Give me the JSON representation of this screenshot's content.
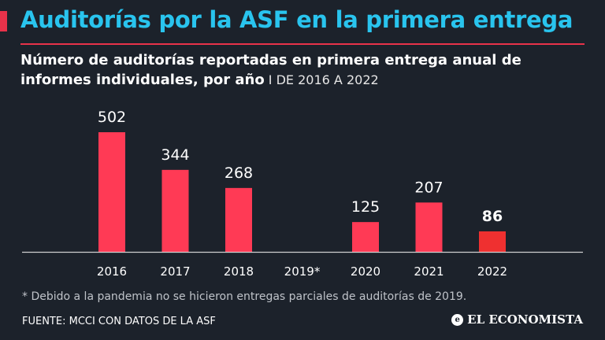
{
  "header": {
    "title": "Auditorías por la ASF en la primera entrega",
    "subtitle_main": "Número de auditorías reportadas en primera entrega anual de informes individuales, por año",
    "subtitle_range": " I DE 2016 A 2022"
  },
  "chart_data": {
    "type": "bar",
    "categories": [
      "2016",
      "2017",
      "2018",
      "2019*",
      "2020",
      "2021",
      "2022"
    ],
    "values": [
      502,
      344,
      268,
      null,
      125,
      207,
      86
    ],
    "labels": [
      "502",
      "344",
      "268",
      "",
      "125",
      "207",
      "86"
    ],
    "highlight_index": 6,
    "ylim": [
      0,
      502
    ],
    "title": "Número de auditorías reportadas en primera entrega anual de informes individuales, por año",
    "xlabel": "",
    "ylabel": ""
  },
  "footnote": "* Debido a la pandemia no se hicieron entregas parciales de auditorías de 2019.",
  "source": "FUENTE: MCCI CON DATOS DE LA ASF",
  "brand": {
    "name": "EL ECONOMISTA",
    "icon": "e-circle-icon"
  },
  "colors": {
    "background": "#1c222b",
    "title": "#29c4ee",
    "accent": "#e8324a",
    "bar": "#ff3a55",
    "bar_highlight": "#ef3030",
    "axis": "#d0d0d0",
    "label": "#ffffff"
  }
}
